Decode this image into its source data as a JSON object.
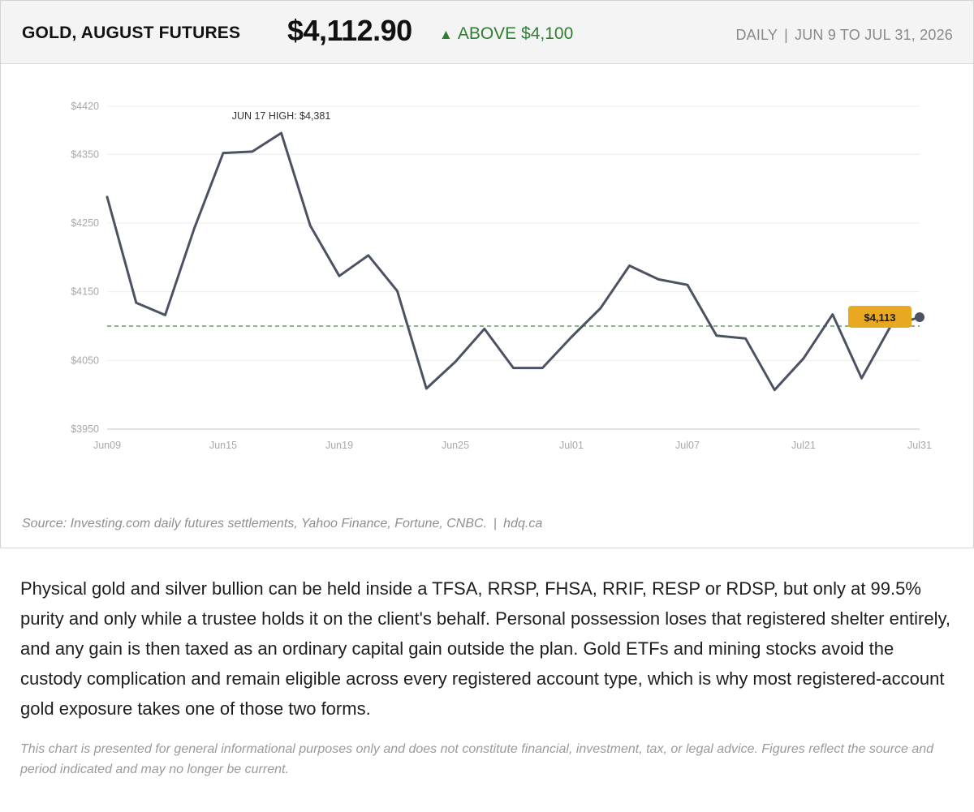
{
  "header": {
    "title": "GOLD, AUGUST FUTURES",
    "price": "$4,112.90",
    "status_arrow": "▲",
    "status_text": "ABOVE $4,100",
    "frequency": "DAILY",
    "separator": "|",
    "period": "JUN 9 TO JUL 31, 2026"
  },
  "colors": {
    "line": "#4b5262",
    "reference_line": "#3d8b3d",
    "badge": "#e8a921",
    "status_green": "#2e7d32"
  },
  "chart_data": {
    "type": "line",
    "title": "GOLD, AUGUST FUTURES",
    "xlabel": "",
    "ylabel": "",
    "grid": true,
    "legend": "none",
    "ylim": [
      3950,
      4420
    ],
    "y_ticks": [
      3950,
      4050,
      4150,
      4250,
      4350,
      4420
    ],
    "y_tick_labels": [
      "$3950",
      "$4050",
      "$4150",
      "$4250",
      "$4350",
      "$4420"
    ],
    "x_ticks": [
      "Jun09",
      "Jun15",
      "Jun19",
      "Jun25",
      "Jul01",
      "Jul07",
      "Jul21",
      "Jul31"
    ],
    "reference_line": 4100,
    "annotation": "JUN 17 HIGH: $4,381",
    "last_value_label": "$4,113",
    "series": [
      {
        "values": [
          4288,
          4134,
          4116,
          4242,
          4352,
          4354,
          4381,
          4246,
          4173,
          4203,
          4151,
          4009,
          4048,
          4096,
          4039,
          4039,
          4084,
          4126,
          4188,
          4168,
          4160,
          4086,
          4082,
          4007,
          4053,
          4117,
          4024,
          4100,
          4113
        ]
      }
    ]
  },
  "source": {
    "text": "Source: Investing.com daily futures settlements, Yahoo Finance, Fortune, CNBC.",
    "separator": "|",
    "site": "hdq.ca"
  },
  "body": {
    "paragraph": "Physical gold and silver bullion can be held inside a TFSA, RRSP, FHSA, RRIF, RESP or RDSP, but only at 99.5% purity and only while a trustee holds it on the client's behalf. Personal possession loses that registered shelter entirely, and any gain is then taxed as an ordinary capital gain outside the plan. Gold ETFs and mining stocks avoid the custody complication and remain eligible across every registered account type, which is why most registered-account gold exposure takes one of those two forms.",
    "disclaimer": "This chart is presented for general informational purposes only and does not constitute financial, investment, tax, or legal advice. Figures reflect the source and period indicated and may no longer be current."
  }
}
